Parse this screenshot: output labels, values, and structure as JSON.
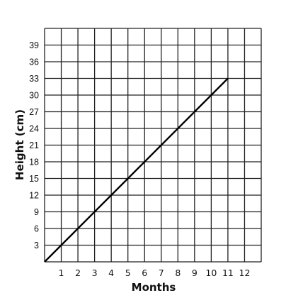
{
  "chart_data": {
    "type": "line",
    "title": "",
    "xlabel": "Months",
    "ylabel": "Height (cm)",
    "xlim": [
      0,
      13
    ],
    "ylim": [
      0,
      42
    ],
    "x_ticks": [
      1,
      2,
      3,
      4,
      5,
      6,
      7,
      8,
      9,
      10,
      11,
      12
    ],
    "y_ticks": [
      3,
      6,
      9,
      12,
      15,
      18,
      21,
      24,
      27,
      30,
      33,
      36,
      39
    ],
    "grid": true,
    "series": [
      {
        "x": [
          0,
          11
        ],
        "y": [
          0,
          33
        ],
        "color": "#000000"
      }
    ]
  }
}
